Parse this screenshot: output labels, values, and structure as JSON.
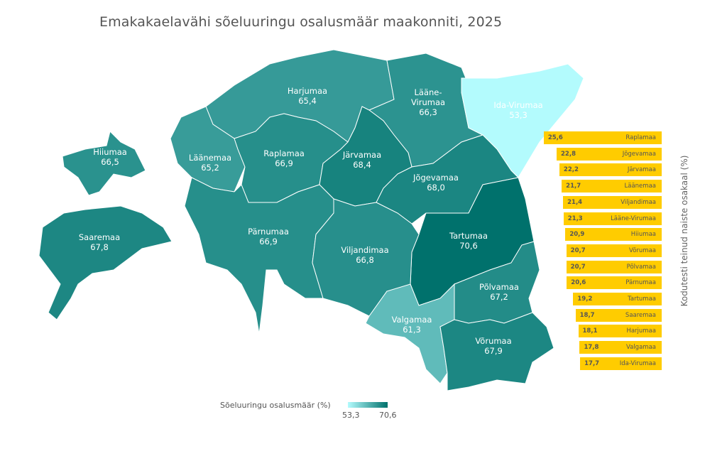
{
  "title": "Emakakaelavähi sõeluuringu osalusmäär maakonniti, 2025",
  "legend": {
    "title": "Sõeluuringu osalusmäär (%)",
    "min": "53,3",
    "max": "70,6",
    "color_min": "#b3fbfd",
    "color_max": "#00716c"
  },
  "counties": [
    {
      "name": "Harjumaa",
      "value": "65,4",
      "v": 65.4
    },
    {
      "name": "Lääne-Virumaa",
      "value": "66,3",
      "v": 66.3
    },
    {
      "name": "Ida-Virumaa",
      "value": "53,3",
      "v": 53.3
    },
    {
      "name": "Läänemaa",
      "value": "65,2",
      "v": 65.2
    },
    {
      "name": "Raplamaa",
      "value": "66,9",
      "v": 66.9
    },
    {
      "name": "Järvamaa",
      "value": "68,4",
      "v": 68.4
    },
    {
      "name": "Jõgevamaa",
      "value": "68,0",
      "v": 68.0
    },
    {
      "name": "Tartumaa",
      "value": "70,6",
      "v": 70.6
    },
    {
      "name": "Pärnumaa",
      "value": "66,9",
      "v": 66.9
    },
    {
      "name": "Viljandimaa",
      "value": "66,8",
      "v": 66.8
    },
    {
      "name": "Valgamaa",
      "value": "61,3",
      "v": 61.3
    },
    {
      "name": "Põlvamaa",
      "value": "67,2",
      "v": 67.2
    },
    {
      "name": "Võrumaa",
      "value": "67,9",
      "v": 67.9
    },
    {
      "name": "Hiiumaa",
      "value": "66,5",
      "v": 66.5
    },
    {
      "name": "Saaremaa",
      "value": "67,8",
      "v": 67.8
    }
  ],
  "chart_data": {
    "type": "bar",
    "ylabel": "Kodutesti teinud naiste osakaal (%)",
    "bar_color": "#ffcc00",
    "categories": [
      "Raplamaa",
      "Jõgevamaa",
      "Järvamaa",
      "Läänemaa",
      "Viljandimaa",
      "Lääne-Virumaa",
      "Hiiumaa",
      "Võrumaa",
      "Põlvamaa",
      "Pärnumaa",
      "Tartumaa",
      "Saaremaa",
      "Harjumaa",
      "Valgamaa",
      "Ida-Virumaa"
    ],
    "labels": [
      "25,6",
      "22,8",
      "22,2",
      "21,7",
      "21,4",
      "21,3",
      "20,9",
      "20,7",
      "20,7",
      "20,6",
      "19,2",
      "18,7",
      "18,1",
      "17,8",
      "17,7"
    ],
    "values": [
      25.6,
      22.8,
      22.2,
      21.7,
      21.4,
      21.3,
      20.9,
      20.7,
      20.7,
      20.6,
      19.2,
      18.7,
      18.1,
      17.8,
      17.7
    ]
  }
}
